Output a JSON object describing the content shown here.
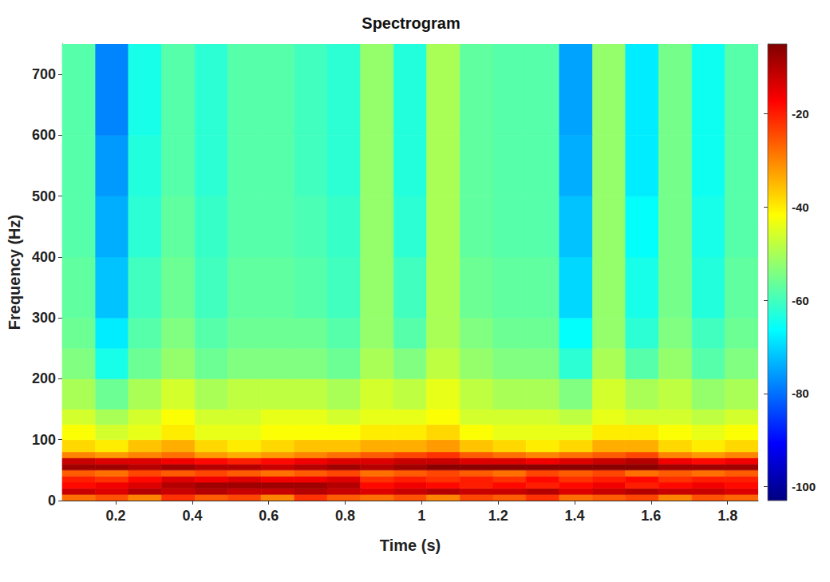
{
  "chart_data": {
    "type": "heatmap",
    "title": "Spectrogram",
    "x_label": "Time (s)",
    "y_label": "Frequency (Hz)",
    "xlim": [
      0.06,
      1.88
    ],
    "xticks": [
      0.2,
      0.4,
      0.6,
      0.8,
      1,
      1.2,
      1.4,
      1.6,
      1.8
    ],
    "ylim": [
      0,
      750
    ],
    "yticks": [
      0,
      100,
      200,
      300,
      400,
      500,
      600,
      700
    ],
    "x_edges": [
      0.06,
      0.147,
      0.233,
      0.32,
      0.407,
      0.493,
      0.58,
      0.667,
      0.753,
      0.84,
      0.927,
      1.013,
      1.1,
      1.187,
      1.273,
      1.36,
      1.447,
      1.533,
      1.62,
      1.707,
      1.793,
      1.88
    ],
    "y_edges": [
      0,
      10,
      20,
      30,
      40,
      50,
      60,
      70,
      80,
      100,
      125,
      150,
      200,
      250,
      300,
      400,
      500,
      600,
      750
    ],
    "cells": [
      [
        -28,
        -25,
        -30,
        -22,
        -26,
        -24,
        -30,
        -22,
        -26,
        -28,
        -25,
        -30,
        -24,
        -26,
        -22,
        -28,
        -26,
        -24,
        -30,
        -25,
        -27
      ],
      [
        -12,
        -14,
        -10,
        -12,
        -10,
        -12,
        -12,
        -10,
        -12,
        -14,
        -12,
        -10,
        -12,
        -12,
        -10,
        -14,
        -12,
        -10,
        -12,
        -12,
        -14
      ],
      [
        -18,
        -16,
        -14,
        -10,
        -8,
        -8,
        -8,
        -8,
        -10,
        -18,
        -16,
        -18,
        -20,
        -18,
        -20,
        -18,
        -16,
        -20,
        -18,
        -16,
        -18
      ],
      [
        -20,
        -22,
        -18,
        -14,
        -16,
        -14,
        -16,
        -16,
        -14,
        -22,
        -20,
        -22,
        -20,
        -22,
        -18,
        -22,
        -20,
        -18,
        -22,
        -20,
        -20
      ],
      [
        -26,
        -28,
        -24,
        -26,
        -24,
        -26,
        -28,
        -26,
        -24,
        -28,
        -26,
        -24,
        -26,
        -28,
        -24,
        -26,
        -24,
        -28,
        -26,
        -28,
        -26
      ],
      [
        -8,
        -8,
        -10,
        -8,
        -10,
        -10,
        -12,
        -10,
        -8,
        -10,
        -8,
        -6,
        -6,
        -6,
        -6,
        -6,
        -6,
        -6,
        -8,
        -8,
        -8
      ],
      [
        -12,
        -14,
        -14,
        -16,
        -18,
        -20,
        -18,
        -16,
        -14,
        -14,
        -12,
        -12,
        -14,
        -14,
        -16,
        -14,
        -12,
        -10,
        -16,
        -18,
        -16
      ],
      [
        -30,
        -32,
        -30,
        -28,
        -32,
        -34,
        -32,
        -30,
        -28,
        -26,
        -24,
        -22,
        -26,
        -28,
        -30,
        -28,
        -26,
        -24,
        -30,
        -32,
        -30
      ],
      [
        -38,
        -40,
        -36,
        -34,
        -38,
        -40,
        -38,
        -36,
        -36,
        -34,
        -34,
        -32,
        -36,
        -38,
        -40,
        -38,
        -34,
        -34,
        -38,
        -40,
        -38
      ],
      [
        -42,
        -46,
        -44,
        -40,
        -44,
        -44,
        -42,
        -42,
        -42,
        -40,
        -40,
        -38,
        -42,
        -44,
        -44,
        -44,
        -40,
        -40,
        -42,
        -44,
        -42
      ],
      [
        -46,
        -50,
        -46,
        -42,
        -46,
        -46,
        -44,
        -44,
        -46,
        -44,
        -44,
        -42,
        -46,
        -46,
        -46,
        -48,
        -44,
        -46,
        -46,
        -48,
        -46
      ],
      [
        -50,
        -56,
        -50,
        -46,
        -50,
        -48,
        -48,
        -48,
        -50,
        -46,
        -48,
        -44,
        -48,
        -50,
        -50,
        -54,
        -46,
        -50,
        -48,
        -52,
        -50
      ],
      [
        -54,
        -64,
        -56,
        -52,
        -56,
        -54,
        -54,
        -54,
        -56,
        -50,
        -54,
        -48,
        -52,
        -54,
        -54,
        -62,
        -50,
        -58,
        -52,
        -58,
        -54
      ],
      [
        -56,
        -68,
        -58,
        -54,
        -58,
        -56,
        -56,
        -56,
        -58,
        -52,
        -58,
        -50,
        -54,
        -56,
        -56,
        -66,
        -52,
        -62,
        -54,
        -60,
        -56
      ],
      [
        -57,
        -72,
        -60,
        -56,
        -60,
        -57,
        -57,
        -58,
        -60,
        -52,
        -60,
        -50,
        -56,
        -57,
        -57,
        -70,
        -52,
        -64,
        -55,
        -63,
        -57
      ],
      [
        -58,
        -74,
        -62,
        -57,
        -61,
        -58,
        -58,
        -59,
        -61,
        -52,
        -62,
        -50,
        -57,
        -58,
        -58,
        -72,
        -52,
        -66,
        -55,
        -64,
        -58
      ],
      [
        -58,
        -76,
        -63,
        -58,
        -62,
        -58,
        -58,
        -60,
        -62,
        -52,
        -63,
        -50,
        -57,
        -58,
        -58,
        -74,
        -52,
        -68,
        -55,
        -65,
        -58
      ],
      [
        -58,
        -78,
        -64,
        -58,
        -62,
        -58,
        -58,
        -60,
        -62,
        -52,
        -63,
        -50,
        -57,
        -58,
        -58,
        -75,
        -52,
        -68,
        -55,
        -65,
        -58
      ]
    ],
    "colorbar": {
      "range": [
        -103,
        -5
      ],
      "ticks": [
        -20,
        -40,
        -60,
        -80,
        -100
      ]
    }
  }
}
